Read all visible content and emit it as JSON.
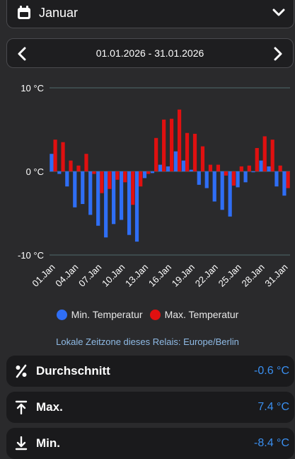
{
  "month_select": {
    "value": "Januar",
    "icon": "calendar-icon",
    "chevron_icon": "chevron-down-icon"
  },
  "date_range": {
    "text": "01.01.2026 - 31.01.2026",
    "prev_icon": "chevron-left-icon",
    "next_icon": "chevron-right-icon"
  },
  "chart_data": {
    "type": "bar",
    "ylim": [
      -10,
      10
    ],
    "y_ticks": [
      10,
      0,
      -10
    ],
    "y_tick_labels": [
      "10 °C",
      "0 °C",
      "-10 °C"
    ],
    "grid": true,
    "legend_position": "bottom",
    "categories": [
      "01.Jan",
      "02.Jan",
      "03.Jan",
      "04.Jan",
      "05.Jan",
      "06.Jan",
      "07.Jan",
      "08.Jan",
      "09.Jan",
      "10.Jan",
      "11.Jan",
      "12.Jan",
      "13.Jan",
      "14.Jan",
      "15.Jan",
      "16.Jan",
      "17.Jan",
      "18.Jan",
      "19.Jan",
      "20.Jan",
      "21.Jan",
      "22.Jan",
      "23.Jan",
      "24.Jan",
      "25.Jan",
      "26.Jan",
      "27.Jan",
      "28.Jan",
      "29.Jan",
      "30.Jan",
      "31.Jan"
    ],
    "x_tick_labels": [
      "01.Jan",
      "04.Jan",
      "07.Jan",
      "10.Jan",
      "13.Jan",
      "16.Jan",
      "19.Jan",
      "22.Jan",
      "25.Jan",
      "28.Jan",
      "31.Jan"
    ],
    "series": [
      {
        "name": "Min. Temperatur",
        "color": "#2f6ef5",
        "values": [
          2.1,
          -0.3,
          -1.8,
          -4.3,
          -3.9,
          -5.2,
          -6.5,
          -7.9,
          -6.3,
          -5.8,
          -7.6,
          -8.4,
          -0.8,
          -0.2,
          0.8,
          0.6,
          2.4,
          1.3,
          0.2,
          -1.6,
          -2.0,
          -3.6,
          -4.6,
          -5.4,
          -1.9,
          -1.3,
          -0.1,
          1.3,
          0.6,
          -1.8,
          -2.9
        ]
      },
      {
        "name": "Max. Temperatur",
        "color": "#e01010",
        "values": [
          3.8,
          3.5,
          1.3,
          0.7,
          2.1,
          -0.3,
          -2.6,
          -2.1,
          -1.0,
          -1.3,
          -4.0,
          -1.8,
          -0.3,
          4.0,
          6.2,
          6.3,
          7.4,
          4.6,
          4.5,
          3.0,
          0.8,
          0.8,
          -0.5,
          -1.7,
          0.6,
          0.7,
          2.8,
          4.2,
          3.8,
          0.7,
          -2.0
        ]
      }
    ]
  },
  "timezone_note": "Lokale Zeitzone dieses Relais: Europe/Berlin",
  "stats": [
    {
      "icon": "percent-icon",
      "label": "Durchschnitt",
      "value": "-0.6 °C"
    },
    {
      "icon": "arrow-up-to-line-icon",
      "label": "Max.",
      "value": "7.4 °C"
    },
    {
      "icon": "arrow-down-to-line-icon",
      "label": "Min.",
      "value": "-8.4 °C"
    }
  ]
}
